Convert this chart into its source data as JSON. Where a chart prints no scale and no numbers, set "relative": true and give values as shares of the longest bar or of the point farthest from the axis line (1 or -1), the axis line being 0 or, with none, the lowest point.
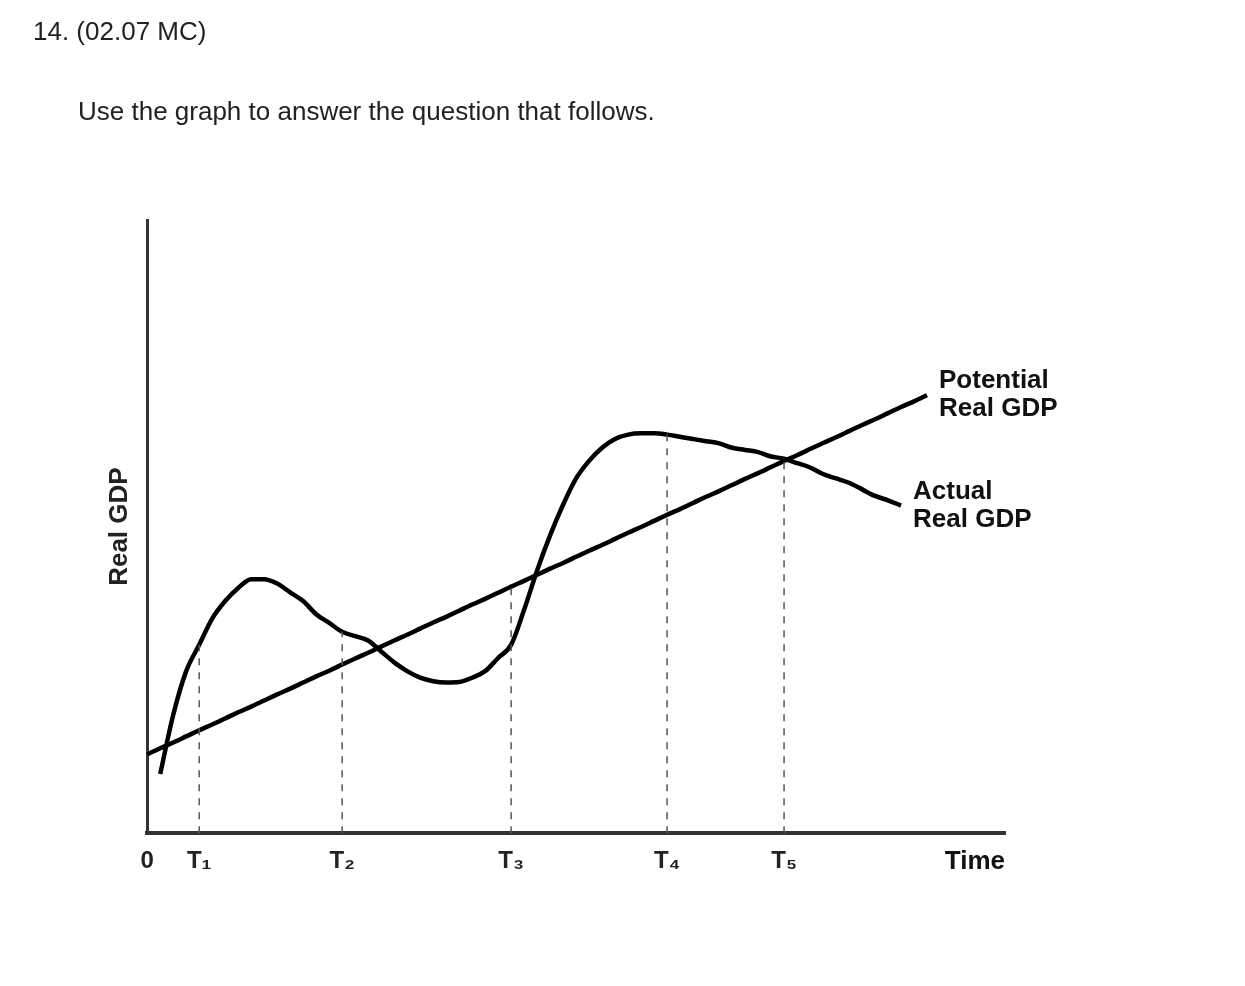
{
  "chart_data": {
    "type": "line",
    "title": "14.  (02.07 MC)",
    "subtitle": "Use the graph to answer the question that follows.",
    "xlabel": "Time",
    "ylabel": "Real GDP",
    "relative": true,
    "legend": false,
    "grid": false,
    "marker": "none",
    "line_style": "solid",
    "categories": [
      "0",
      null,
      null,
      null,
      "T₁",
      null,
      null,
      null,
      null,
      null,
      null,
      null,
      null,
      null,
      null,
      "T₂",
      null,
      null,
      null,
      null,
      null,
      null,
      null,
      null,
      null,
      null,
      null,
      null,
      "T₃",
      null,
      null,
      null,
      null,
      null,
      null,
      null,
      null,
      null,
      null,
      null,
      "T₄",
      null,
      null,
      null,
      null,
      null,
      null,
      null,
      null,
      "T₅",
      null,
      null,
      null,
      null,
      null,
      null,
      null,
      null,
      null,
      null,
      null,
      null,
      null,
      null,
      null,
      null,
      null
    ],
    "series": [
      {
        "name": "Potential Real GDP",
        "color": "#000000",
        "values": [
          0.18,
          0.194,
          0.207,
          0.221,
          0.235,
          0.248,
          0.262,
          0.276,
          0.289,
          0.303,
          0.317,
          0.33,
          0.344,
          0.358,
          0.371,
          0.385,
          0.399,
          0.412,
          0.426,
          0.44,
          0.453,
          0.467,
          0.481,
          0.494,
          0.508,
          0.522,
          0.535,
          0.549,
          0.563,
          0.576,
          0.59,
          0.604,
          0.617,
          0.631,
          0.645,
          0.658,
          0.672,
          0.686,
          0.699,
          0.713,
          0.727,
          0.74,
          0.754,
          0.768,
          0.781,
          0.795,
          0.809,
          0.822,
          0.836,
          0.85,
          0.863,
          0.877,
          0.891,
          0.904,
          0.918,
          0.932,
          0.945,
          0.959,
          0.973,
          0.986,
          1,
          null,
          null,
          null,
          null,
          null,
          null
        ]
      },
      {
        "name": "Actual Real GDP",
        "color": "#000000",
        "values": [
          null,
          0.135,
          0.27,
          0.37,
          0.43,
          0.49,
          0.53,
          0.56,
          0.58,
          0.58,
          0.57,
          0.55,
          0.53,
          0.5,
          0.48,
          0.46,
          0.45,
          0.44,
          0.415,
          0.39,
          0.37,
          0.355,
          0.347,
          0.344,
          0.345,
          0.355,
          0.37,
          0.4,
          0.43,
          0.51,
          0.6,
          0.68,
          0.75,
          0.81,
          0.85,
          0.88,
          0.9,
          0.91,
          0.913,
          0.913,
          0.91,
          0.905,
          0.9,
          0.895,
          0.89,
          0.88,
          0.875,
          0.87,
          0.86,
          0.855,
          0.845,
          0.835,
          0.82,
          0.81,
          0.8,
          0.785,
          0.77,
          0.76,
          0.748,
          null,
          null,
          null,
          null,
          null,
          null,
          null,
          null
        ]
      }
    ],
    "ref_lines": [
      {
        "axis": "x",
        "value": "T₁",
        "line_style": "dashed"
      },
      {
        "axis": "x",
        "value": "T₂",
        "line_style": "dashed"
      },
      {
        "axis": "x",
        "value": "T₃",
        "line_style": "dashed"
      },
      {
        "axis": "x",
        "value": "T₄",
        "line_style": "dashed"
      },
      {
        "axis": "x",
        "value": "T₅",
        "line_style": "dashed"
      }
    ]
  }
}
